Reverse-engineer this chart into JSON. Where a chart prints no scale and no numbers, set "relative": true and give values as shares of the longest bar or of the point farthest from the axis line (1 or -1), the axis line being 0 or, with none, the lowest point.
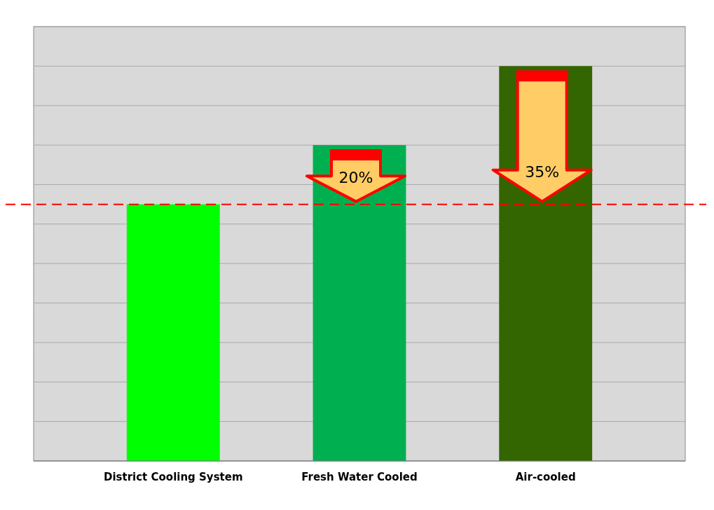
{
  "chart_data": {
    "type": "bar",
    "relative": true,
    "categories": [
      "District Cooling System",
      "Fresh Water Cooled",
      "Air-cooled"
    ],
    "values": [
      0.65,
      0.8,
      1
    ],
    "colors": [
      "#00ff00",
      "#00b050",
      "#336600"
    ],
    "grid": "y",
    "ref_lines": [
      {
        "axis": "y",
        "value": 0.65,
        "color": "#ff0000",
        "line_style": "dashed"
      }
    ],
    "annotations": [
      "20%",
      "35%"
    ]
  }
}
